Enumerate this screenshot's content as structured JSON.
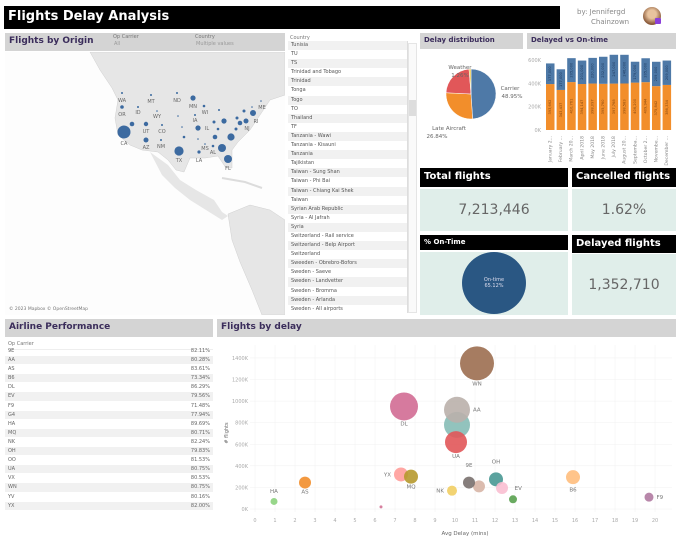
{
  "header": {
    "title": "Flights Delay Analysis",
    "byline_1": "by: Jennifergd",
    "byline_2": "Chainzown"
  },
  "origin": {
    "title": "Flights by Origin",
    "filter_carrier_label": "Op Carrier",
    "filter_carrier_value": "All",
    "filter_country_label": "Country",
    "filter_country_value": "Multiple values",
    "attribution": "© 2023 Mapbox © OpenStreetMap",
    "map_labels": [
      "WA",
      "MT",
      "ND",
      "MN",
      "OR",
      "ID",
      "WY",
      "WI",
      "IA",
      "UT",
      "CO",
      "IL",
      "CA",
      "AZ",
      "NM",
      "TX",
      "LA",
      "MS",
      "AL",
      "FL",
      "NJ",
      "RI",
      "ME"
    ],
    "marker_color": "#3c6aa0"
  },
  "country_list": {
    "label": "Country",
    "items": [
      "Tunisia",
      "TU",
      "TS",
      "Trinidad and Tobago",
      "Trinidad",
      "Tonga",
      "Togo",
      "TO",
      "Thailand",
      "TF",
      "Tanzania - Wawi",
      "Tanzania - Kisauni",
      "Tanzania",
      "Tajikistan",
      "Taiwan - Sung Shan",
      "Taiwan - Phi Bai",
      "Taiwan - Chiang Kai Shek",
      "Taiwan",
      "Syrian Arab Republic",
      "Syria - Al Jafrah",
      "Syria",
      "Switzerland - Rail service",
      "Switzerland - Belp Airport",
      "Switzerland",
      "Sweeden - Obrebro-Bofors",
      "Sweden - Saeve",
      "Sweden - Landvetter",
      "Sweden - Bromma",
      "Sweden - Arlanda",
      "Sweden - All airports"
    ]
  },
  "delay_distribution": {
    "title": "Delay distribution"
  },
  "delayed_vs_ontime": {
    "title": "Delayed vs On-time"
  },
  "kpis": {
    "total_title": "Total flights",
    "total_value": "7,213,446",
    "cancelled_title": "Cancelled flights",
    "cancelled_value": "1.62%",
    "ontime_title": "% On-Time",
    "ontime_label": "On-time",
    "ontime_value": "65.12%",
    "delayed_title": "Delayed flights",
    "delayed_value": "1,352,710"
  },
  "airline": {
    "title": "Airline Performance",
    "column": "Op Carrier",
    "rows": [
      [
        "9E",
        "82.11%"
      ],
      [
        "AA",
        "80.28%"
      ],
      [
        "AS",
        "83.61%"
      ],
      [
        "B6",
        "73.34%"
      ],
      [
        "DL",
        "86.29%"
      ],
      [
        "EV",
        "79.56%"
      ],
      [
        "F9",
        "71.48%"
      ],
      [
        "G4",
        "77.94%"
      ],
      [
        "HA",
        "89.69%"
      ],
      [
        "MQ",
        "80.71%"
      ],
      [
        "NK",
        "82.24%"
      ],
      [
        "OH",
        "79.83%"
      ],
      [
        "OO",
        "81.53%"
      ],
      [
        "UA",
        "80.75%"
      ],
      [
        "VX",
        "80.53%"
      ],
      [
        "WN",
        "80.75%"
      ],
      [
        "YV",
        "80.16%"
      ],
      [
        "YX",
        "82.00%"
      ]
    ]
  },
  "scatter": {
    "title": "Flights by delay"
  },
  "chart_data": [
    {
      "type": "pie",
      "slices": [
        {
          "label": "Carrier",
          "value": 48.95,
          "color": "#4e79a7"
        },
        {
          "label": "Late Aircraft",
          "value": 26.84,
          "color": "#f28e2b"
        },
        {
          "label": "",
          "value": 22.95,
          "color": "#e15759"
        },
        {
          "label": "Weather",
          "value": 1.26,
          "color": "#edc948"
        }
      ],
      "value_labels": [
        "48.95%",
        "26.84%",
        "",
        "1.26%"
      ]
    },
    {
      "type": "bar",
      "stacked": true,
      "categories": [
        "January 2...",
        "February ...",
        "March 20...",
        "April 2018",
        "May 2018",
        "June 2018",
        "July 2018",
        "August 20...",
        "Septemba...",
        "October 2...",
        "Novembe...",
        "December ..."
      ],
      "series": [
        {
          "color": "#f28e2b",
          "values": [
            393662,
            343437,
            410761,
            394147,
            398097,
            395760,
            397768,
            398583,
            406200,
            409944,
            375842,
            386334
          ]
        },
        {
          "color": "#4e79a7",
          "values": [
            177000,
            177000,
            205000,
            201000,
            220000,
            232000,
            247000,
            246000,
            179000,
            205000,
            209000,
            209000
          ]
        }
      ],
      "yticks": [
        "0K",
        "200K",
        "400K",
        "600K"
      ],
      "ylim": [
        0,
        650000
      ]
    },
    {
      "type": "scatter",
      "xlabel": "Avg Delay (mins)",
      "ylabel": "# flights",
      "xlim": [
        0,
        20.5
      ],
      "ylim": [
        0,
        1500
      ],
      "xticks": [
        0,
        1,
        2,
        3,
        4,
        5,
        6,
        7,
        8,
        9,
        10,
        11,
        12,
        13,
        14,
        15,
        16,
        17,
        18,
        19,
        20
      ],
      "yticks": [
        "0K",
        "200K",
        "400K",
        "600K",
        "800K",
        "1000K",
        "1200K",
        "1400K"
      ],
      "grid": true,
      "points": [
        {
          "label": "WN",
          "x": 11.1,
          "y": 1350,
          "size": 17,
          "color": "#9c6e50"
        },
        {
          "label": "DL",
          "x": 7.45,
          "y": 950,
          "size": 14,
          "color": "#d16b94"
        },
        {
          "label": "",
          "x": 10.1,
          "y": 780,
          "size": 13,
          "color": "#86bcb6"
        },
        {
          "label": "AA",
          "x": 10.1,
          "y": 920,
          "size": 13,
          "color": "#bab0ab"
        },
        {
          "label": "UA",
          "x": 10.05,
          "y": 620,
          "size": 11,
          "color": "#e15759"
        },
        {
          "label": "YX",
          "x": 7.3,
          "y": 320,
          "size": 7,
          "color": "#ff9d9a"
        },
        {
          "label": "MQ",
          "x": 7.8,
          "y": 300,
          "size": 7,
          "color": "#b6992d"
        },
        {
          "label": "AS",
          "x": 2.5,
          "y": 245,
          "size": 6,
          "color": "#f28e2b"
        },
        {
          "label": "HA",
          "x": 0.95,
          "y": 70,
          "size": 3.5,
          "color": "#8cd17d"
        },
        {
          "label": "NK",
          "x": 9.85,
          "y": 170,
          "size": 5,
          "color": "#f1ce63"
        },
        {
          "label": "",
          "x": 11.2,
          "y": 210,
          "size": 6,
          "color": "#d7b5a6"
        },
        {
          "label": "9E",
          "x": 10.7,
          "y": 245,
          "size": 6,
          "color": "#79706e"
        },
        {
          "label": "OH",
          "x": 12.05,
          "y": 275,
          "size": 7,
          "color": "#499894"
        },
        {
          "label": "EV",
          "x": 12.35,
          "y": 195,
          "size": 6,
          "color": "#fabfd2"
        },
        {
          "label": "",
          "x": 12.9,
          "y": 90,
          "size": 4,
          "color": "#59a14f"
        },
        {
          "label": "B6",
          "x": 15.9,
          "y": 295,
          "size": 7,
          "color": "#ffbe7d"
        },
        {
          "label": "F9",
          "x": 19.7,
          "y": 110,
          "size": 4.5,
          "color": "#b07aa1"
        },
        {
          "label": "",
          "x": 6.3,
          "y": 20,
          "size": 1.5,
          "color": "#d37295"
        }
      ]
    }
  ]
}
